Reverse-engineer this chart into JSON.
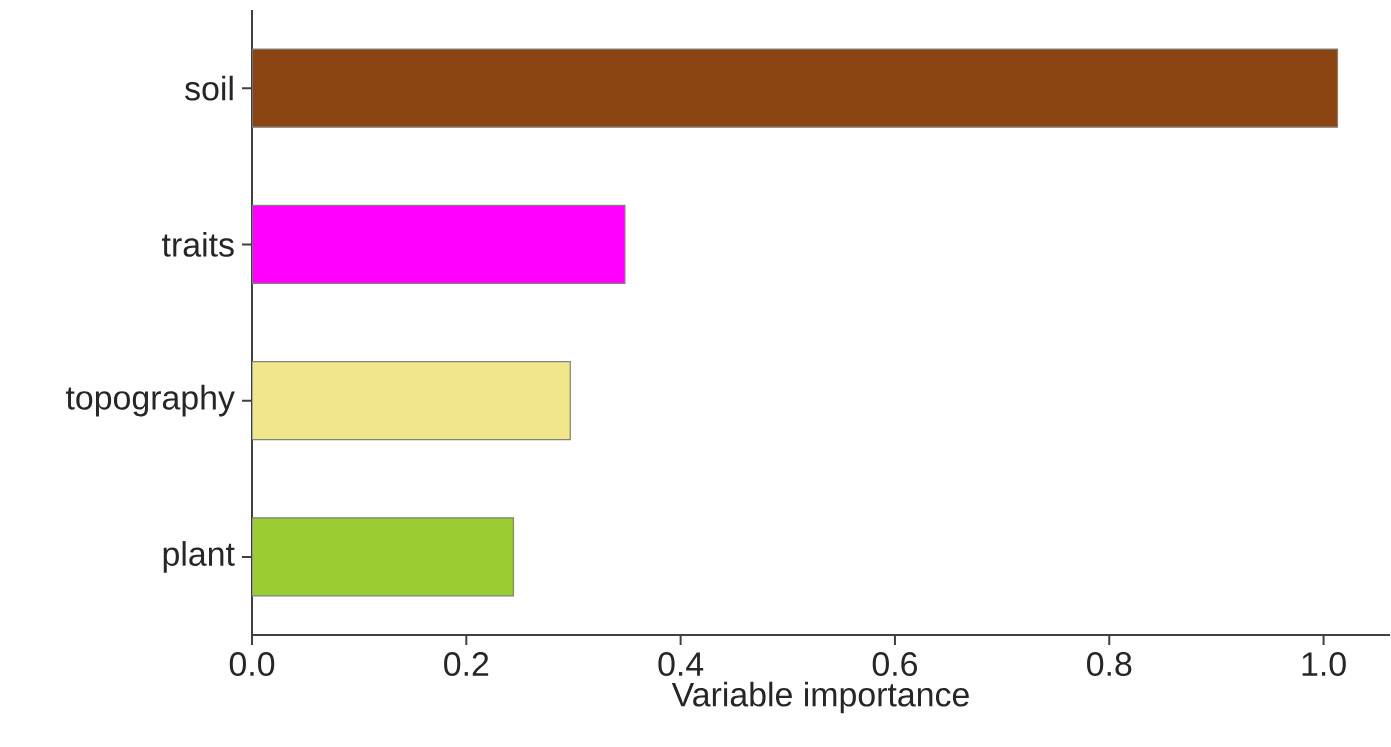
{
  "chart_data": {
    "type": "bar",
    "orientation": "horizontal",
    "xlabel": "Variable importance",
    "categories": [
      "soil",
      "traits",
      "topography",
      "plant"
    ],
    "values": [
      1.013,
      0.348,
      0.297,
      0.244
    ],
    "colors": [
      "#8b4513",
      "#ff00ff",
      "#f0e68c",
      "#9acd32"
    ],
    "xlim": [
      0,
      1.062
    ],
    "xticks": [
      {
        "value": 0,
        "label": "0.0"
      },
      {
        "value": 0.2,
        "label": "0.2"
      },
      {
        "value": 0.4,
        "label": "0.4"
      },
      {
        "value": 0.6,
        "label": "0.6"
      },
      {
        "value": 0.8,
        "label": "0.8"
      },
      {
        "value": 1.0,
        "label": "1.0"
      }
    ],
    "grid": false
  }
}
